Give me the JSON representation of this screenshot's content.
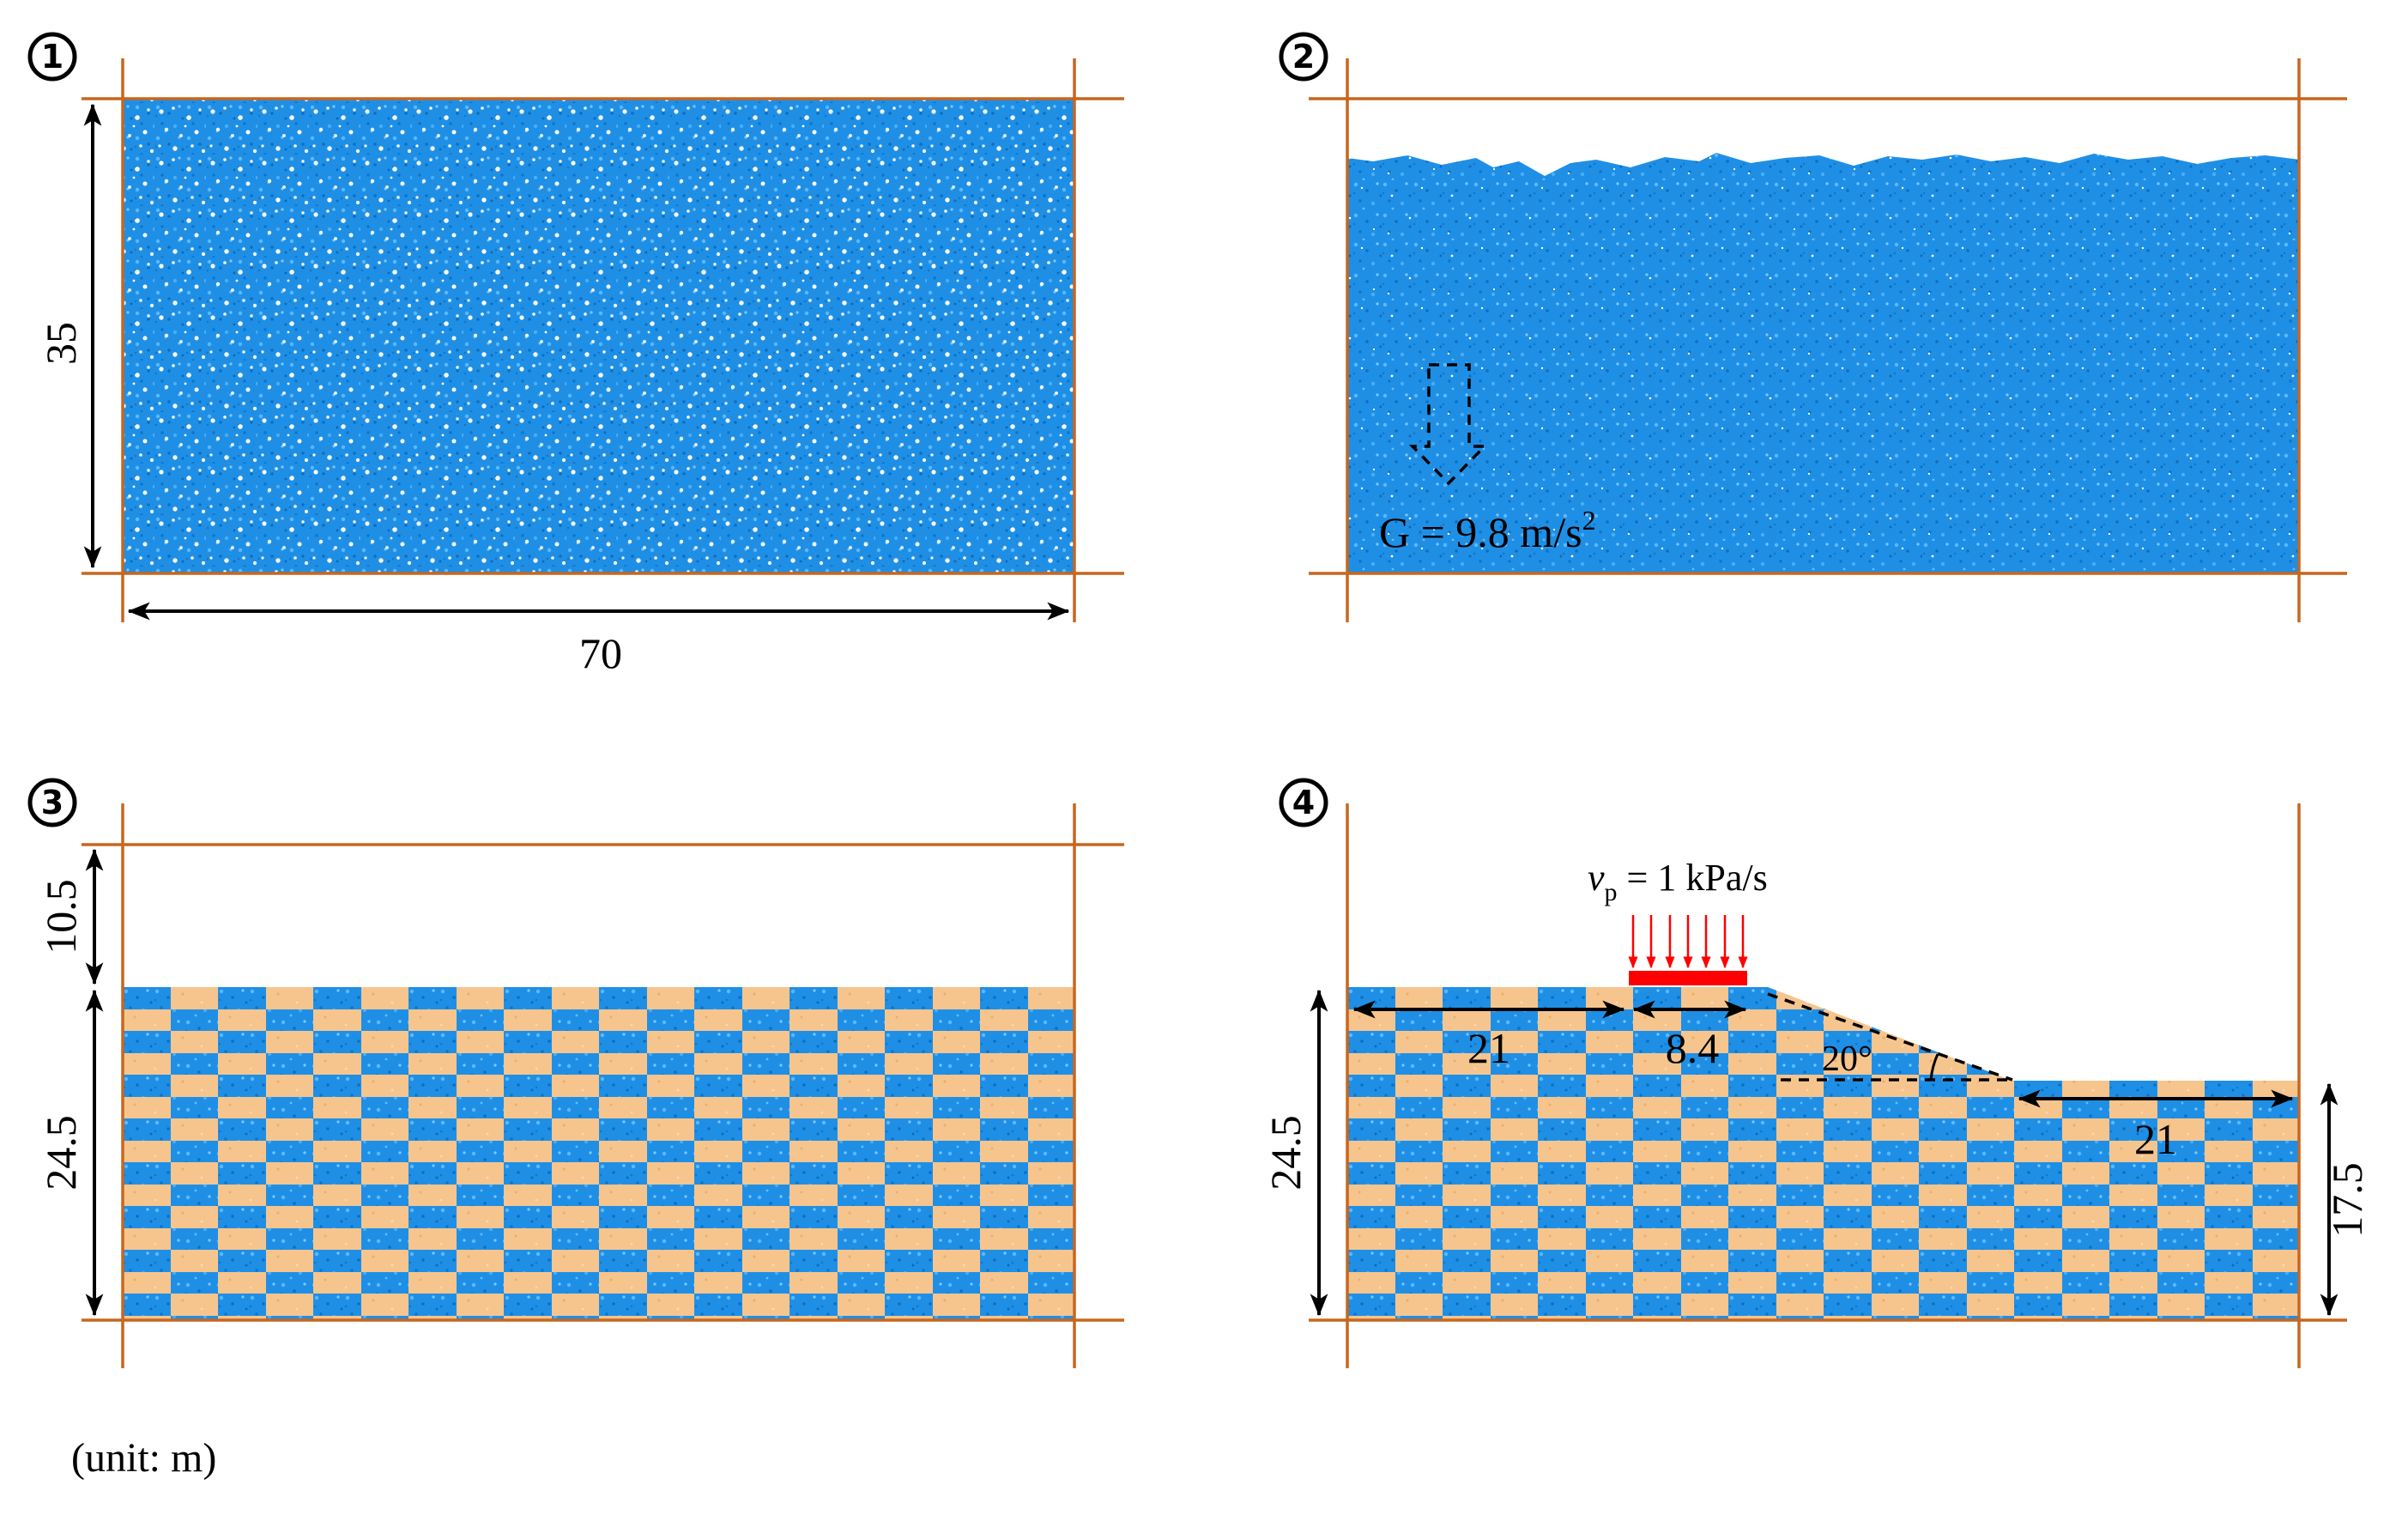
{
  "panels": [
    {
      "id": "1",
      "label": "①",
      "state": "loose initial particle assembly",
      "dimensions": {
        "width": "70",
        "height": "35"
      }
    },
    {
      "id": "2",
      "label": "②",
      "state": "settled under gravity",
      "gravity_label": "G = 9.8 m/s",
      "gravity_exponent": "2"
    },
    {
      "id": "3",
      "label": "③",
      "state": "trimmed layered ground",
      "dimensions": {
        "removed_height": "10.5",
        "ground_height": "24.5"
      }
    },
    {
      "id": "4",
      "label": "④",
      "state": "slope with footing load",
      "load_symbol": "v",
      "load_subscript": "p",
      "load_value": " = 1 kPa/s",
      "dimensions": {
        "crest_left": "21",
        "footing_width": "8.4",
        "slope_angle": "20°",
        "toe_right": "21",
        "crest_height": "24.5",
        "toe_height": "17.5"
      }
    }
  ],
  "unit_note": "(unit: m)",
  "colors": {
    "particle_blue": "#1e90e8",
    "particle_orange": "#f6c58e",
    "guide_line": "#c8661e",
    "load": "#ff0000"
  }
}
